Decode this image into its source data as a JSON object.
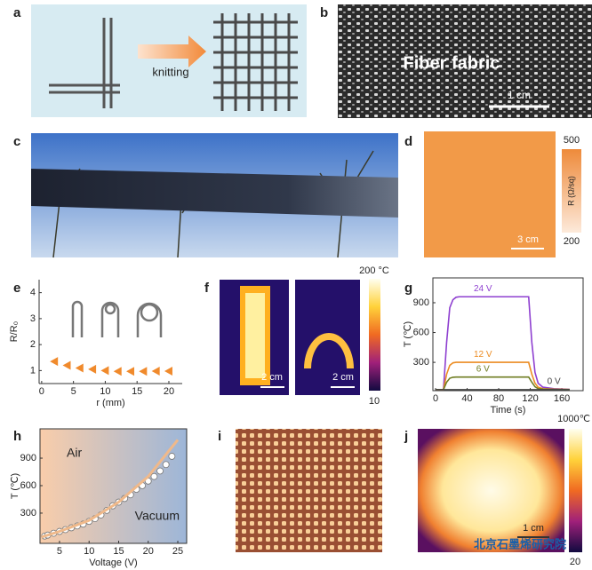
{
  "figure": {
    "panel_labels": [
      "a",
      "b",
      "c",
      "d",
      "e",
      "f",
      "g",
      "h",
      "i",
      "j"
    ],
    "a": {
      "arrow_label": "knitting"
    },
    "b": {
      "caption": "Fiber fabric",
      "scale": "1 cm"
    },
    "d": {
      "scale": "3 cm",
      "colorbar_max": "500",
      "colorbar_label": "R (Ω/sq)",
      "colorbar_min": "200"
    },
    "f": {
      "scale_left": "2 cm",
      "scale_right": "2 cm",
      "colorbar_max": "200 °C",
      "colorbar_min": "10"
    },
    "j": {
      "scale": "1 cm",
      "colorbar_max": "1000℃",
      "colorbar_min": "20"
    },
    "watermark": "北京石墨烯研究院"
  },
  "chart_data": [
    {
      "type": "scatter",
      "marker": "triangle",
      "frame": false,
      "x": [
        2,
        4,
        6,
        8,
        10,
        12,
        14,
        16,
        18,
        20
      ],
      "values": [
        1.35,
        1.2,
        1.1,
        1.05,
        1.0,
        0.97,
        0.97,
        0.97,
        0.98,
        0.98
      ],
      "color": "#f08a2c",
      "xlabel": "r (mm)",
      "ylabel": "R/R₀",
      "xlim": [
        -0.4,
        22.1
      ],
      "ylim": [
        0.5,
        4.5
      ],
      "xticks": [
        0,
        5,
        10,
        15,
        20
      ],
      "yticks": [
        1,
        2,
        3,
        4
      ]
    },
    {
      "type": "line",
      "frame": true,
      "x": [
        0,
        10,
        14,
        18,
        22,
        26,
        30,
        60,
        100,
        118,
        122,
        126,
        130,
        136,
        150,
        170
      ],
      "series": [
        {
          "name": "24 V",
          "color": "#8e3fd0",
          "values": [
            25,
            25,
            500,
            850,
            930,
            955,
            960,
            960,
            960,
            960,
            500,
            200,
            90,
            50,
            35,
            28
          ]
        },
        {
          "name": "12 V",
          "color": "#ec8c22",
          "values": [
            25,
            25,
            180,
            270,
            295,
            300,
            300,
            300,
            300,
            300,
            180,
            90,
            50,
            35,
            30,
            27
          ]
        },
        {
          "name": "6 V",
          "color": "#6f7d22",
          "values": [
            25,
            25,
            100,
            140,
            150,
            152,
            152,
            152,
            152,
            152,
            100,
            55,
            35,
            30,
            27,
            26
          ]
        },
        {
          "name": "0 V",
          "color": "#444444",
          "values": [
            25,
            25,
            25,
            25,
            25,
            25,
            25,
            25,
            25,
            25,
            25,
            25,
            25,
            25,
            25,
            25
          ]
        }
      ],
      "xlabel": "Time (s)",
      "ylabel": "T (℃)",
      "xlim": [
        -3.4,
        187
      ],
      "ylim": [
        15,
        1150
      ],
      "xticks": [
        0,
        40,
        80,
        120,
        160
      ],
      "yticks": [
        300,
        600,
        900
      ]
    },
    {
      "type": "scatter",
      "frame": true,
      "series": [
        {
          "mode": "markers",
          "color": "#ffffff",
          "x": [
            2.5,
            3,
            4,
            5,
            6,
            7,
            8,
            9,
            10,
            11,
            12,
            13,
            14,
            15,
            16,
            17,
            18,
            19,
            20,
            21,
            22,
            23,
            24
          ],
          "values": [
            50,
            60,
            80,
            100,
            120,
            140,
            160,
            180,
            210,
            240,
            280,
            330,
            380,
            420,
            460,
            500,
            560,
            600,
            650,
            700,
            760,
            830,
            920
          ]
        },
        {
          "mode": "line",
          "color": "#f0b98a",
          "x": [
            2,
            5,
            10,
            15,
            20,
            25
          ],
          "values": [
            40,
            100,
            220,
            420,
            700,
            1100
          ]
        }
      ],
      "annotations": [
        "Air",
        "Vacuum"
      ],
      "background": [
        "#f9cdaa",
        "#9db6d8"
      ],
      "xlabel": "Voltage (V)",
      "ylabel": "T (℃)",
      "xlim": [
        1.7,
        26.5
      ],
      "ylim": [
        -30,
        1220
      ],
      "xticks": [
        5,
        10,
        15,
        20,
        25
      ],
      "yticks": [
        300,
        600,
        900
      ]
    }
  ]
}
